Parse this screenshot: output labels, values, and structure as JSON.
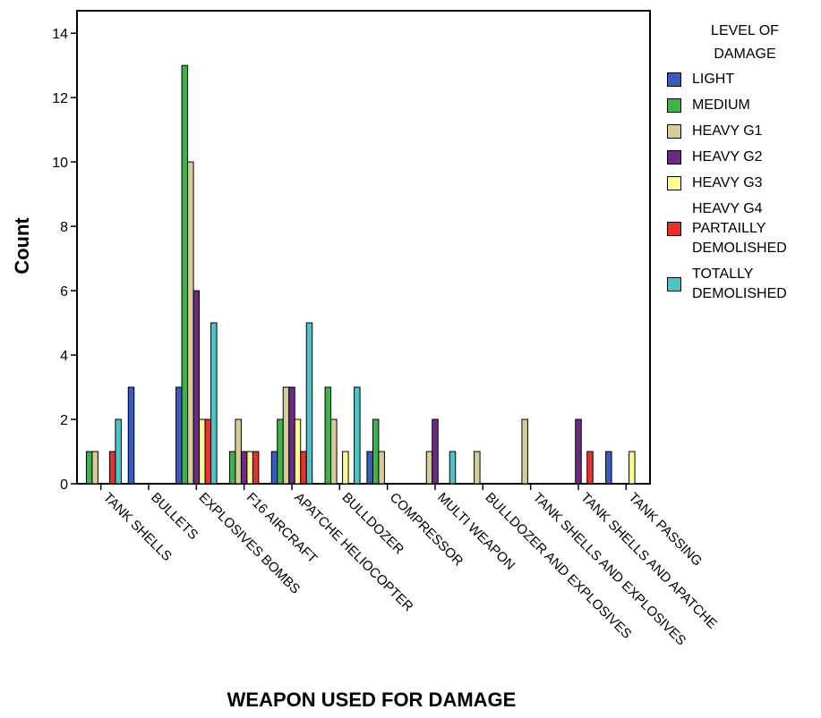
{
  "chart_data": {
    "type": "bar",
    "y_label": "Count",
    "x_label": "WEAPON USED FOR DAMAGE",
    "legend_title": "LEVEL OF DAMAGE",
    "categories": [
      "TANK SHELLS",
      "BULLETS",
      "EXPLOSIVES BOMBS",
      "F16 AIRCRAFT",
      "APATCHE HELIOCOPTER",
      "BULLDOZER",
      "COMPRESSOR",
      "MULTI WEAPON",
      "BULLDOZER AND EXPLOSIVES",
      "TANK SHELLS AND EXPLOSIVES",
      "TANK SHELLS AND APATCHE",
      "TANK PASSING"
    ],
    "series": [
      {
        "name": "LIGHT",
        "color": "#3a5bbf",
        "values": [
          null,
          3,
          3,
          null,
          1,
          null,
          1,
          null,
          null,
          null,
          null,
          1
        ]
      },
      {
        "name": "MEDIUM",
        "color": "#3db44a",
        "values": [
          1,
          null,
          13,
          1,
          2,
          3,
          2,
          null,
          null,
          null,
          null,
          null
        ]
      },
      {
        "name": "HEAVY G1",
        "color": "#d5cc9a",
        "values": [
          1,
          null,
          10,
          2,
          3,
          2,
          1,
          1,
          1,
          2,
          null,
          null
        ]
      },
      {
        "name": "HEAVY G2",
        "color": "#6b2a84",
        "values": [
          null,
          null,
          6,
          1,
          3,
          null,
          null,
          2,
          null,
          null,
          2,
          null
        ]
      },
      {
        "name": "HEAVY G3",
        "color": "#fdfb8f",
        "values": [
          null,
          null,
          2,
          1,
          2,
          1,
          null,
          null,
          null,
          null,
          null,
          1
        ]
      },
      {
        "name": "HEAVY G4 PARTAILLY DEMOLISHED",
        "color": "#e8312d",
        "values": [
          1,
          null,
          2,
          1,
          1,
          null,
          null,
          null,
          null,
          null,
          1,
          null
        ]
      },
      {
        "name": "TOTALLY DEMOLISHED",
        "color": "#4cc4c8",
        "values": [
          2,
          null,
          5,
          null,
          5,
          3,
          null,
          1,
          null,
          null,
          null,
          null
        ]
      }
    ],
    "ylim": [
      0,
      14.7
    ],
    "yticks": [
      0,
      2,
      4,
      6,
      8,
      10,
      12,
      14
    ],
    "grid": false,
    "legend": "right"
  }
}
